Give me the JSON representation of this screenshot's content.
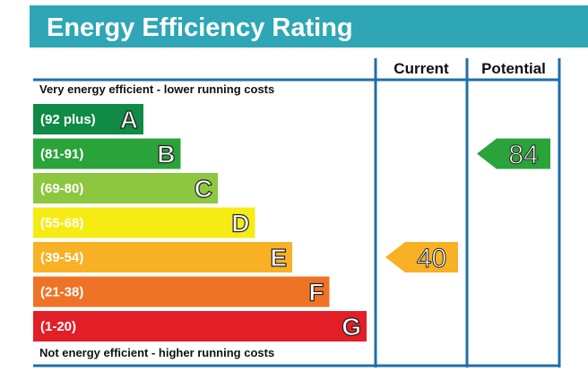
{
  "chart_data": {
    "type": "bar",
    "title": "Energy Efficiency Rating",
    "top_caption": "Very energy efficient - lower running costs",
    "bottom_caption": "Not energy efficient - higher running costs",
    "columns": [
      "Current",
      "Potential"
    ],
    "bands": [
      {
        "letter": "A",
        "range": "(92 plus)",
        "color": "#0f8b45"
      },
      {
        "letter": "B",
        "range": "(81-91)",
        "color": "#2aa33a"
      },
      {
        "letter": "C",
        "range": "(69-80)",
        "color": "#8dc63f"
      },
      {
        "letter": "D",
        "range": "(55-68)",
        "color": "#f6ec13"
      },
      {
        "letter": "E",
        "range": "(39-54)",
        "color": "#f8b124"
      },
      {
        "letter": "F",
        "range": "(21-38)",
        "color": "#ee7326"
      },
      {
        "letter": "G",
        "range": "(1-20)",
        "color": "#e21e26"
      }
    ],
    "ratings": {
      "current": {
        "value": 40,
        "label": "40",
        "band": "E",
        "color": "#f8b124"
      },
      "potential": {
        "value": 84,
        "label": "84",
        "band": "B",
        "color": "#2aa33a"
      }
    },
    "colors": {
      "title_bar": "#2fa6b5",
      "frame": "#1f6fa8"
    }
  }
}
